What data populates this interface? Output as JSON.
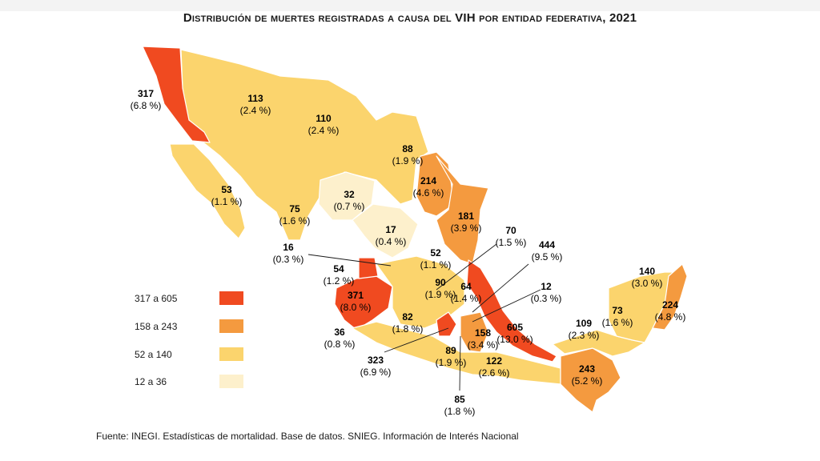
{
  "title": "Distribución de muertes registradas a causa del VIH por entidad federativa, 2021",
  "colors": {
    "high": "#f04a20",
    "mid_high": "#f49a3f",
    "mid": "#fbd46d",
    "low": "#fdf0cc",
    "border": "#ffffff"
  },
  "legend": [
    {
      "label": "317 a 605",
      "color": "#f04a20"
    },
    {
      "label": "158 a 243",
      "color": "#f49a3f"
    },
    {
      "label": "52 a 140",
      "color": "#fbd46d"
    },
    {
      "label": "12 a 36",
      "color": "#fdf0cc"
    }
  ],
  "states": [
    {
      "value": "317",
      "pct": "(6.8 %)"
    },
    {
      "value": "113",
      "pct": "(2.4 %)"
    },
    {
      "value": "110",
      "pct": "(2.4 %)"
    },
    {
      "value": "88",
      "pct": "(1.9 %)"
    },
    {
      "value": "214",
      "pct": "(4.6 %)"
    },
    {
      "value": "53",
      "pct": "(1.1 %)"
    },
    {
      "value": "32",
      "pct": "(0.7 %)"
    },
    {
      "value": "75",
      "pct": "(1.6 %)"
    },
    {
      "value": "181",
      "pct": "(3.9 %)"
    },
    {
      "value": "17",
      "pct": "(0.4 %)"
    },
    {
      "value": "70",
      "pct": "(1.5 %)"
    },
    {
      "value": "444",
      "pct": "(9.5 %)"
    },
    {
      "value": "16",
      "pct": "(0.3 %)"
    },
    {
      "value": "52",
      "pct": "(1.1 %)"
    },
    {
      "value": "140",
      "pct": "(3.0 %)"
    },
    {
      "value": "54",
      "pct": "(1.2 %)"
    },
    {
      "value": "90",
      "pct": "(1.9 %)"
    },
    {
      "value": "64",
      "pct": "(1.4 %)"
    },
    {
      "value": "12",
      "pct": "(0.3 %)"
    },
    {
      "value": "224",
      "pct": "(4.8 %)"
    },
    {
      "value": "371",
      "pct": "(8.0 %)"
    },
    {
      "value": "73",
      "pct": "(1.6 %)"
    },
    {
      "value": "82",
      "pct": "(1.8 %)"
    },
    {
      "value": "109",
      "pct": "(2.3 %)"
    },
    {
      "value": "605",
      "pct": "(13.0 %)"
    },
    {
      "value": "36",
      "pct": "(0.8 %)"
    },
    {
      "value": "158",
      "pct": "(3.4 %)"
    },
    {
      "value": "323",
      "pct": "(6.9 %)"
    },
    {
      "value": "89",
      "pct": "(1.9 %)"
    },
    {
      "value": "122",
      "pct": "(2.6 %)"
    },
    {
      "value": "243",
      "pct": "(5.2 %)"
    },
    {
      "value": "85",
      "pct": "(1.8 %)"
    }
  ],
  "source": "Fuente: INEGI. Estadísticas de mortalidad. Base de datos. SNIEG. Información de Interés Nacional"
}
